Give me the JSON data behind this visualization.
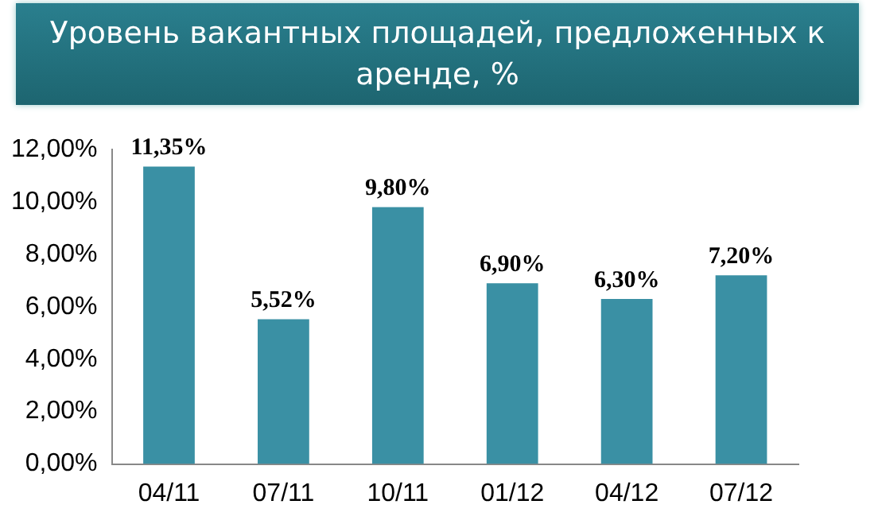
{
  "chart_data": {
    "type": "bar",
    "title": "Уровень вакантных площадей,  предложенных к аренде, %",
    "categories": [
      "04/11",
      "07/11",
      "10/11",
      "01/12",
      "04/12",
      "07/12"
    ],
    "values": [
      11.35,
      5.52,
      9.8,
      6.9,
      6.3,
      7.2
    ],
    "value_labels": [
      "11,35%",
      "5,52%",
      "9,80%",
      "6,90%",
      "6,30%",
      "7,20%"
    ],
    "color": "#3a90a4",
    "ylim": [
      0,
      12
    ],
    "yticks": [
      {
        "value": 0,
        "label": "0,00%"
      },
      {
        "value": 2,
        "label": "2,00%"
      },
      {
        "value": 4,
        "label": "4,00%"
      },
      {
        "value": 6,
        "label": "6,00%"
      },
      {
        "value": 8,
        "label": "8,00%"
      },
      {
        "value": 10,
        "label": "10,00%"
      },
      {
        "value": 12,
        "label": "12,00%"
      }
    ],
    "grid": false,
    "legend": false
  }
}
